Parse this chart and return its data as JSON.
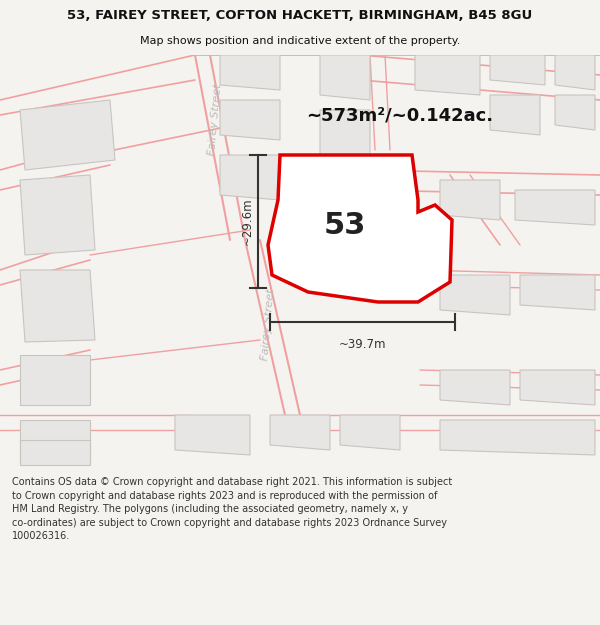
{
  "title_line1": "53, FAIREY STREET, COFTON HACKETT, BIRMINGHAM, B45 8GU",
  "title_line2": "Map shows position and indicative extent of the property.",
  "area_label": "~573m²/~0.142ac.",
  "number_label": "53",
  "dim_width_label": "~39.7m",
  "dim_height_label": "~29.6m",
  "street_label": "Fairey Street",
  "footer_text_wrapped": "Contains OS data © Crown copyright and database right 2021. This information is subject\nto Crown copyright and database rights 2023 and is reproduced with the permission of\nHM Land Registry. The polygons (including the associated geometry, namely x, y\nco-ordinates) are subject to Crown copyright and database rights 2023 Ordnance Survey\n100026316.",
  "map_bg": "#ffffff",
  "building_fill": "#e8e6e4",
  "building_stroke": "#c8c4c0",
  "road_color": "#f0a0a0",
  "road_color_dark": "#e07070",
  "highlight_fill": "#ffffff",
  "highlight_stroke": "#dd0000",
  "dim_color": "#444444",
  "street_text_color": "#bbbbbb",
  "title_color": "#111111",
  "footer_color": "#333333",
  "title_bg": "#ffffff",
  "footer_bg": "#ffffff",
  "fig_bg": "#f5f3f0"
}
